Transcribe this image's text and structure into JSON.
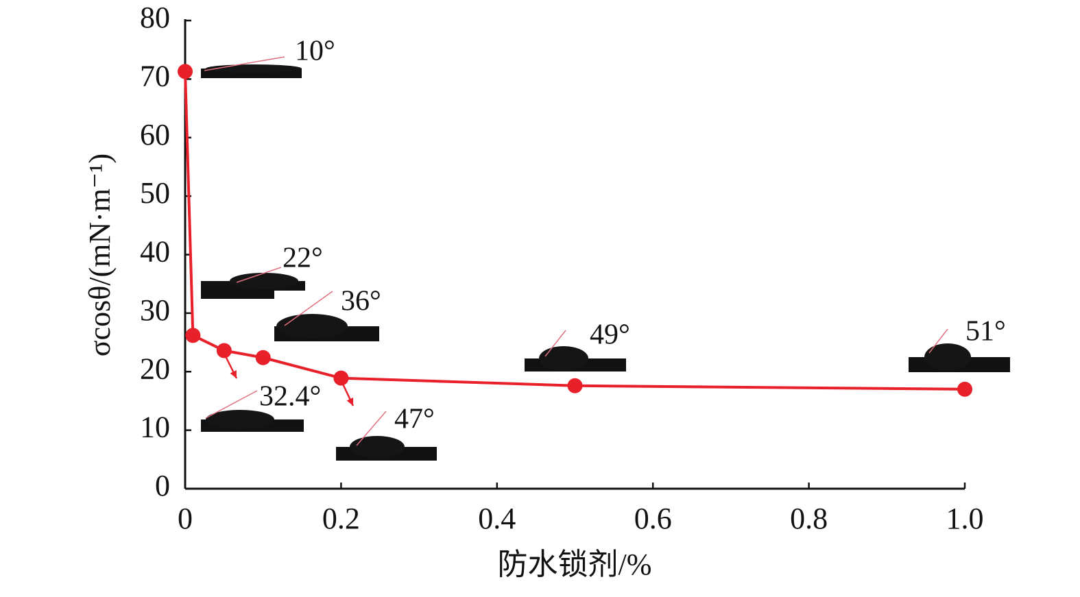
{
  "chart_data": {
    "type": "line",
    "x_label": "防水锁剂/%",
    "y_label": "σcosθ/(mN·m⁻¹)",
    "x": [
      0,
      0.01,
      0.05,
      0.1,
      0.2,
      0.5,
      1.0
    ],
    "series": [
      {
        "color": "#e8202a",
        "values": [
          71.3,
          26.2,
          23.6,
          22.4,
          18.9,
          17.6,
          17.0
        ]
      }
    ],
    "xlim": [
      0,
      1
    ],
    "ylim": [
      0,
      80
    ],
    "xticks": [
      0,
      0.2,
      0.4,
      0.6,
      0.8,
      {
        "value": 1,
        "label": "1.0"
      }
    ],
    "yticks": [
      0,
      10,
      20,
      30,
      40,
      50,
      60,
      70,
      80
    ],
    "annotations": [
      "10°",
      "22°",
      "32.4°",
      "36°",
      "47°",
      "49°",
      "51°"
    ]
  }
}
